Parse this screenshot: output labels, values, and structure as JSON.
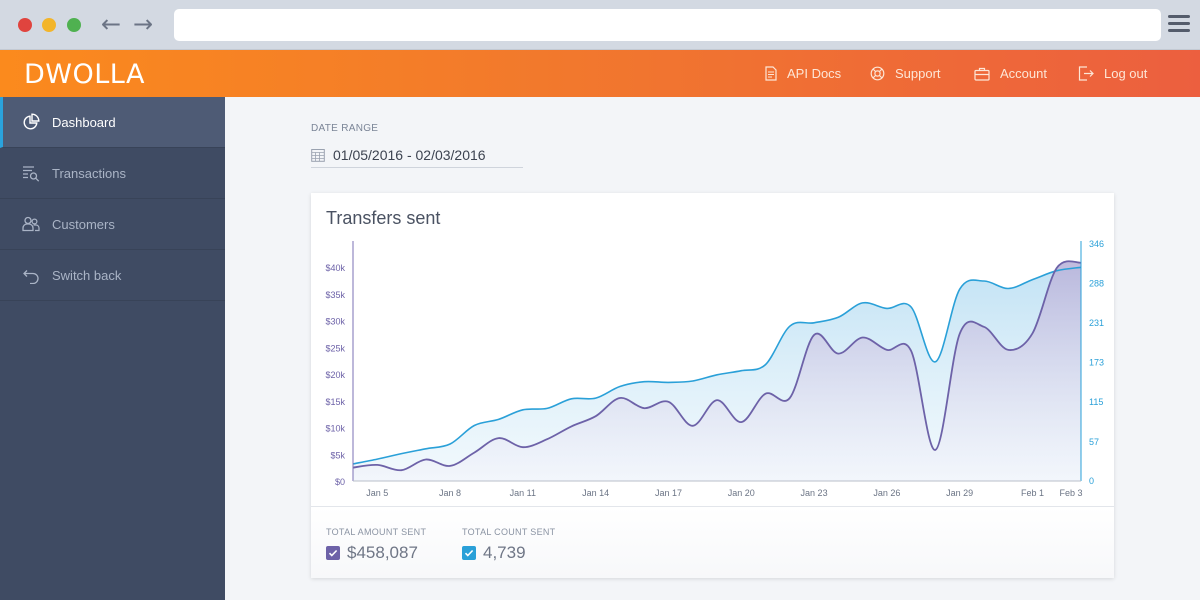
{
  "header": {
    "logo": "DWOLLA",
    "nav": {
      "api_docs": "API Docs",
      "support": "Support",
      "account": "Account",
      "logout": "Log out"
    }
  },
  "sidebar": {
    "items": [
      {
        "label": "Dashboard",
        "icon": "pie-chart-icon",
        "active": true
      },
      {
        "label": "Transactions",
        "icon": "list-search-icon",
        "active": false
      },
      {
        "label": "Customers",
        "icon": "customers-icon",
        "active": false
      },
      {
        "label": "Switch back",
        "icon": "back-arrow-icon",
        "active": false
      }
    ]
  },
  "filter": {
    "label": "DATE RANGE",
    "value": "01/05/2016 - 02/03/2016"
  },
  "card": {
    "title": "Transfers sent"
  },
  "stats": {
    "amount_label": "TOTAL AMOUNT SENT",
    "amount_value": "$458,087",
    "count_label": "TOTAL COUNT SENT",
    "count_value": "4,739"
  },
  "colors": {
    "header_start": "#fb8a1d",
    "header_end": "#ec5f3f",
    "amount_series": "#6d62a8",
    "count_series": "#2aa0d8",
    "sidebar_bg": "#3f4b63"
  },
  "chart_data": {
    "type": "area",
    "title": "Transfers sent",
    "x_ticks": [
      "Jan 5",
      "Jan 8",
      "Jan 11",
      "Jan 14",
      "Jan 17",
      "Jan 20",
      "Jan 23",
      "Jan 26",
      "Jan 29",
      "Feb 1",
      "Feb 3"
    ],
    "y_left_ticks": [
      "$0",
      "$5k",
      "$10k",
      "$15k",
      "$20k",
      "$25k",
      "$30k",
      "$35k",
      "$40k"
    ],
    "y_right_ticks": [
      "0",
      "57",
      "115",
      "173",
      "231",
      "288",
      "346"
    ],
    "y_left_range": [
      0,
      40000
    ],
    "y_right_range": [
      0,
      346
    ],
    "grid": false,
    "series": [
      {
        "name": "TOTAL AMOUNT SENT",
        "axis": "left",
        "x": [
          "Jan 4",
          "Jan 5",
          "Jan 6",
          "Jan 7",
          "Jan 8",
          "Jan 9",
          "Jan 10",
          "Jan 11",
          "Jan 12",
          "Jan 13",
          "Jan 14",
          "Jan 15",
          "Jan 16",
          "Jan 17",
          "Jan 18",
          "Jan 19",
          "Jan 20",
          "Jan 21",
          "Jan 22",
          "Jan 23",
          "Jan 24",
          "Jan 25",
          "Jan 26",
          "Jan 27",
          "Jan 28",
          "Jan 29",
          "Jan 30",
          "Jan 31",
          "Feb 1",
          "Feb 2",
          "Feb 3"
        ],
        "values": [
          2700,
          3200,
          2200,
          4200,
          3000,
          5500,
          8200,
          6500,
          8000,
          10400,
          12300,
          15700,
          13800,
          15000,
          10500,
          15300,
          11200,
          16500,
          15700,
          27500,
          24000,
          27000,
          24700,
          24500,
          6000,
          27700,
          29000,
          24700,
          27800,
          40000,
          41000
        ]
      },
      {
        "name": "TOTAL COUNT SENT",
        "axis": "right",
        "x": [
          "Jan 4",
          "Jan 5",
          "Jan 6",
          "Jan 7",
          "Jan 8",
          "Jan 9",
          "Jan 10",
          "Jan 11",
          "Jan 12",
          "Jan 13",
          "Jan 14",
          "Jan 15",
          "Jan 16",
          "Jan 17",
          "Jan 18",
          "Jan 19",
          "Jan 20",
          "Jan 21",
          "Jan 22",
          "Jan 23",
          "Jan 24",
          "Jan 25",
          "Jan 26",
          "Jan 27",
          "Jan 28",
          "Jan 29",
          "Jan 30",
          "Jan 31",
          "Feb 1",
          "Feb 2",
          "Feb 3"
        ],
        "values": [
          25,
          32,
          40,
          47,
          54,
          81,
          90,
          104,
          106,
          120,
          121,
          138,
          145,
          144,
          146,
          155,
          161,
          170,
          226,
          231,
          239,
          260,
          252,
          254,
          174,
          280,
          292,
          281,
          294,
          307,
          312
        ]
      }
    ]
  }
}
